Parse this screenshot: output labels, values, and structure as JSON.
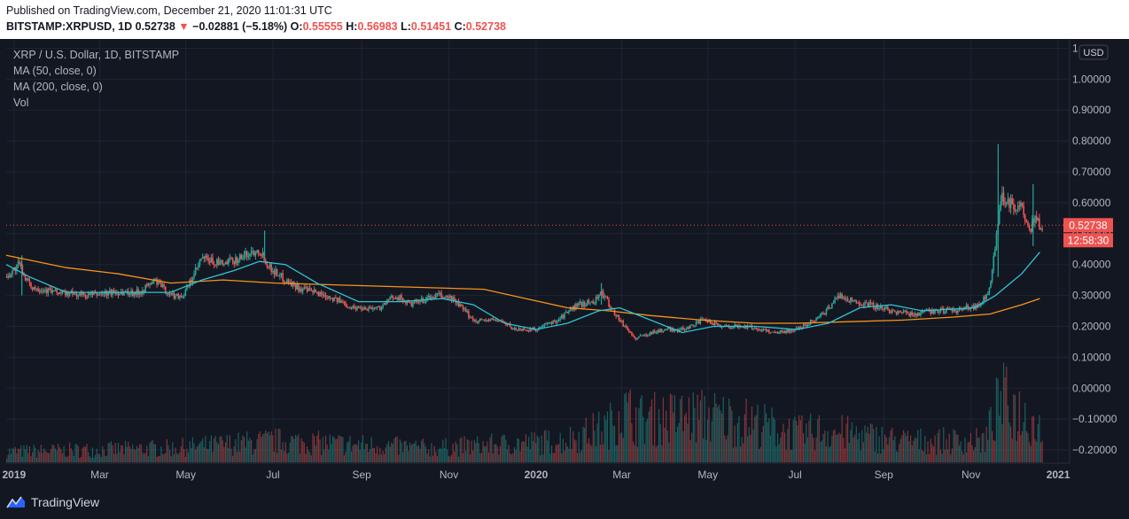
{
  "header": {
    "published": "Published on TradingView.com, December 21, 2020 11:01:31 UTC",
    "symbol": "BITSTAMP:XRPUSD, 1D",
    "last": "0.52738",
    "arrow": "▼",
    "change": "−0.02881 (−5.18%)",
    "o_label": "O:",
    "o": "0.55555",
    "h_label": "H:",
    "h": "0.56983",
    "l_label": "L:",
    "l": "0.51451",
    "c_label": "C:",
    "c": "0.52738"
  },
  "legend": {
    "title": "XRP / U.S. Dollar, 1D, BITSTAMP",
    "ma50": "MA (50, close, 0)",
    "ma200": "MA (200, close, 0)",
    "vol": "Vol"
  },
  "price_badge": "0.52738",
  "time_badge": "12:58:30",
  "currency": "USD",
  "brand": "TradingView",
  "colors": {
    "up": "#26a69a",
    "down": "#ef5350",
    "ma50": "#2ec4d6",
    "ma200": "#f7931a",
    "background": "#131722"
  },
  "chart_data": {
    "type": "candlestick",
    "title": "XRP / U.S. Dollar, 1D, BITSTAMP",
    "y_ticks": [
      "1",
      "1.00000",
      "0.90000",
      "0.80000",
      "0.70000",
      "0.60000",
      "0.50000",
      "0.40000",
      "0.30000",
      "0.20000",
      "0.10000",
      "0.00000",
      "−0.10000",
      "−0.20000"
    ],
    "y_tick_values": [
      1.1,
      1.0,
      0.9,
      0.8,
      0.7,
      0.6,
      0.5,
      0.4,
      0.3,
      0.2,
      0.1,
      0.0,
      -0.1,
      -0.2
    ],
    "ylim": [
      -0.24,
      1.13
    ],
    "x_ticks": [
      {
        "label": "2019",
        "t": 2019.0,
        "bold": true
      },
      {
        "label": "Mar",
        "t": 2019.164,
        "bold": false
      },
      {
        "label": "May",
        "t": 2019.329,
        "bold": false
      },
      {
        "label": "Jul",
        "t": 2019.496,
        "bold": false
      },
      {
        "label": "Sep",
        "t": 2019.666,
        "bold": false
      },
      {
        "label": "Nov",
        "t": 2019.833,
        "bold": false
      },
      {
        "label": "2020",
        "t": 2020.0,
        "bold": true
      },
      {
        "label": "Mar",
        "t": 2020.164,
        "bold": false
      },
      {
        "label": "May",
        "t": 2020.329,
        "bold": false
      },
      {
        "label": "Jul",
        "t": 2020.496,
        "bold": false
      },
      {
        "label": "Sep",
        "t": 2020.666,
        "bold": false
      },
      {
        "label": "Nov",
        "t": 2020.833,
        "bold": false
      },
      {
        "label": "2021",
        "t": 2021.0,
        "bold": true
      }
    ],
    "xlim": [
      2018.985,
      2021.005
    ],
    "price_anchors": [
      [
        2018.985,
        0.36
      ],
      [
        2019.01,
        0.4
      ],
      [
        2019.03,
        0.33
      ],
      [
        2019.08,
        0.31
      ],
      [
        2019.14,
        0.3
      ],
      [
        2019.19,
        0.31
      ],
      [
        2019.24,
        0.31
      ],
      [
        2019.27,
        0.35
      ],
      [
        2019.3,
        0.3
      ],
      [
        2019.325,
        0.3
      ],
      [
        2019.36,
        0.42
      ],
      [
        2019.4,
        0.4
      ],
      [
        2019.43,
        0.42
      ],
      [
        2019.47,
        0.45
      ],
      [
        2019.49,
        0.39
      ],
      [
        2019.52,
        0.35
      ],
      [
        2019.55,
        0.32
      ],
      [
        2019.6,
        0.3
      ],
      [
        2019.65,
        0.26
      ],
      [
        2019.7,
        0.26
      ],
      [
        2019.73,
        0.3
      ],
      [
        2019.76,
        0.27
      ],
      [
        2019.81,
        0.3
      ],
      [
        2019.84,
        0.29
      ],
      [
        2019.88,
        0.22
      ],
      [
        2019.93,
        0.22
      ],
      [
        2019.96,
        0.19
      ],
      [
        2020.0,
        0.19
      ],
      [
        2020.04,
        0.22
      ],
      [
        2020.08,
        0.27
      ],
      [
        2020.11,
        0.28
      ],
      [
        2020.125,
        0.31
      ],
      [
        2020.14,
        0.27
      ],
      [
        2020.16,
        0.22
      ],
      [
        2020.19,
        0.16
      ],
      [
        2020.22,
        0.18
      ],
      [
        2020.25,
        0.19
      ],
      [
        2020.28,
        0.19
      ],
      [
        2020.32,
        0.22
      ],
      [
        2020.36,
        0.2
      ],
      [
        2020.4,
        0.2
      ],
      [
        2020.46,
        0.18
      ],
      [
        2020.5,
        0.19
      ],
      [
        2020.55,
        0.24
      ],
      [
        2020.58,
        0.3
      ],
      [
        2020.61,
        0.28
      ],
      [
        2020.64,
        0.27
      ],
      [
        2020.68,
        0.25
      ],
      [
        2020.72,
        0.24
      ],
      [
        2020.76,
        0.25
      ],
      [
        2020.8,
        0.25
      ],
      [
        2020.85,
        0.27
      ],
      [
        2020.87,
        0.32
      ],
      [
        2020.88,
        0.48
      ],
      [
        2020.89,
        0.62
      ],
      [
        2020.91,
        0.6
      ],
      [
        2020.93,
        0.58
      ],
      [
        2020.945,
        0.5
      ],
      [
        2020.955,
        0.55
      ],
      [
        2020.965,
        0.527
      ]
    ],
    "spikes": [
      [
        2020.125,
        0.34,
        0.27
      ],
      [
        2020.885,
        0.79,
        0.36
      ],
      [
        2020.952,
        0.66,
        0.46
      ],
      [
        2019.48,
        0.51,
        0.42
      ],
      [
        2019.015,
        0.43,
        0.3
      ]
    ],
    "ma50_points": [
      [
        2018.985,
        0.4
      ],
      [
        2019.03,
        0.36
      ],
      [
        2019.1,
        0.31
      ],
      [
        2019.2,
        0.31
      ],
      [
        2019.3,
        0.31
      ],
      [
        2019.36,
        0.35
      ],
      [
        2019.42,
        0.38
      ],
      [
        2019.47,
        0.41
      ],
      [
        2019.52,
        0.4
      ],
      [
        2019.58,
        0.34
      ],
      [
        2019.66,
        0.28
      ],
      [
        2019.74,
        0.28
      ],
      [
        2019.82,
        0.29
      ],
      [
        2019.88,
        0.27
      ],
      [
        2019.94,
        0.21
      ],
      [
        2020.0,
        0.19
      ],
      [
        2020.06,
        0.21
      ],
      [
        2020.12,
        0.25
      ],
      [
        2020.16,
        0.26
      ],
      [
        2020.22,
        0.22
      ],
      [
        2020.28,
        0.18
      ],
      [
        2020.34,
        0.2
      ],
      [
        2020.42,
        0.2
      ],
      [
        2020.5,
        0.19
      ],
      [
        2020.56,
        0.21
      ],
      [
        2020.62,
        0.26
      ],
      [
        2020.68,
        0.27
      ],
      [
        2020.74,
        0.25
      ],
      [
        2020.84,
        0.26
      ],
      [
        2020.88,
        0.3
      ],
      [
        2020.93,
        0.37
      ],
      [
        2020.965,
        0.44
      ]
    ],
    "ma200_points": [
      [
        2018.985,
        0.43
      ],
      [
        2019.1,
        0.39
      ],
      [
        2019.2,
        0.37
      ],
      [
        2019.3,
        0.34
      ],
      [
        2019.4,
        0.35
      ],
      [
        2019.5,
        0.34
      ],
      [
        2019.6,
        0.335
      ],
      [
        2019.7,
        0.33
      ],
      [
        2019.8,
        0.325
      ],
      [
        2019.9,
        0.32
      ],
      [
        2019.98,
        0.29
      ],
      [
        2020.06,
        0.26
      ],
      [
        2020.14,
        0.25
      ],
      [
        2020.22,
        0.235
      ],
      [
        2020.32,
        0.22
      ],
      [
        2020.42,
        0.21
      ],
      [
        2020.5,
        0.21
      ],
      [
        2020.6,
        0.215
      ],
      [
        2020.7,
        0.22
      ],
      [
        2020.8,
        0.23
      ],
      [
        2020.87,
        0.24
      ],
      [
        2020.93,
        0.27
      ],
      [
        2020.965,
        0.29
      ]
    ],
    "volume_profile": [
      [
        2018.985,
        0.15
      ],
      [
        2019.3,
        0.2
      ],
      [
        2019.5,
        0.3
      ],
      [
        2019.8,
        0.2
      ],
      [
        2020.05,
        0.3
      ],
      [
        2020.14,
        0.5
      ],
      [
        2020.16,
        0.75
      ],
      [
        2020.2,
        0.6
      ],
      [
        2020.33,
        0.65
      ],
      [
        2020.42,
        0.55
      ],
      [
        2020.5,
        0.4
      ],
      [
        2020.55,
        0.45
      ],
      [
        2020.7,
        0.3
      ],
      [
        2020.86,
        0.3
      ],
      [
        2020.89,
        0.9
      ],
      [
        2020.965,
        0.5
      ]
    ],
    "last_price": 0.52738
  }
}
